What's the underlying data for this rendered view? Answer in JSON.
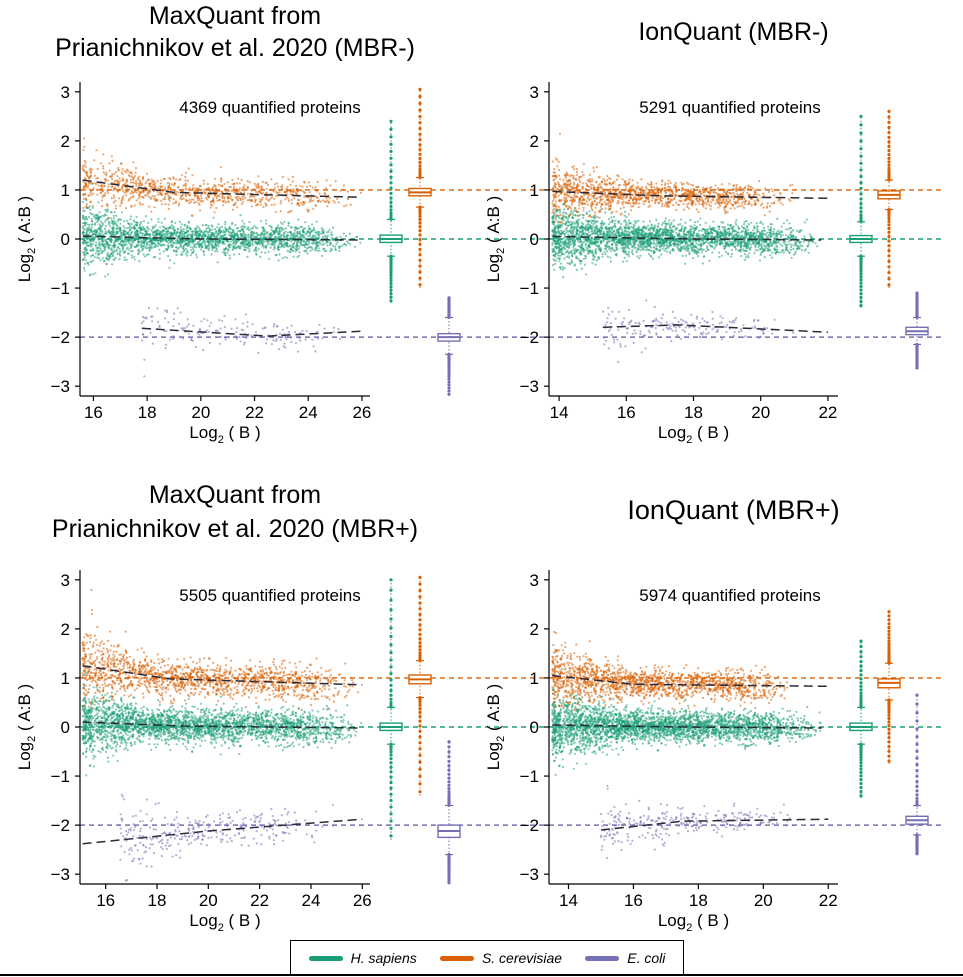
{
  "colors": {
    "H. sapiens": "#1b9e77",
    "S. cerevisiae": "#d95f02",
    "E. coli": "#7570b3"
  },
  "legend": {
    "items": [
      {
        "label": "H. sapiens",
        "color": "#1b9e77"
      },
      {
        "label": "S. cerevisiae",
        "color": "#d95f02"
      },
      {
        "label": "E. coli",
        "color": "#7570b3"
      }
    ]
  },
  "chart_data": [
    {
      "type": "scatter",
      "title": [
        "MaxQuant from",
        "Prianichnikov et al. 2020 (MBR-)"
      ],
      "annotation": "4369 quantified proteins",
      "xlabel": "Log2 ( B )",
      "ylabel": "Log2 ( A:B )",
      "xlim": [
        15.5,
        26.3
      ],
      "ylim": [
        -3.2,
        3.2
      ],
      "xticks": [
        16,
        18,
        20,
        22,
        24,
        26
      ],
      "yticks": [
        -3,
        -2,
        -1,
        0,
        1,
        2,
        3
      ],
      "expected": {
        "H. sapiens": 0,
        "S. cerevisiae": 1,
        "E. coli": -2
      },
      "series": [
        {
          "name": "H. sapiens",
          "x_range": [
            15.6,
            26.0
          ],
          "center": 0.0,
          "spread": 0.25,
          "count": 2200,
          "trend": [
            [
              15.6,
              0.06
            ],
            [
              20,
              0.0
            ],
            [
              26.0,
              -0.02
            ]
          ],
          "box": {
            "median": 0.0,
            "q1": -0.07,
            "q3": 0.08,
            "whisker_low": -0.35,
            "whisker_high": 0.4,
            "min": -1.3,
            "max": 2.4
          }
        },
        {
          "name": "S. cerevisiae",
          "x_range": [
            15.6,
            26.0
          ],
          "center": 0.95,
          "spread": 0.25,
          "count": 900,
          "trend": [
            [
              15.6,
              1.2
            ],
            [
              19,
              0.95
            ],
            [
              26.0,
              0.85
            ]
          ],
          "box": {
            "median": 0.95,
            "q1": 0.88,
            "q3": 1.03,
            "whisker_low": 0.65,
            "whisker_high": 1.25,
            "min": -1.0,
            "max": 3.05
          }
        },
        {
          "name": "E. coli",
          "x_range": [
            17.8,
            25.5
          ],
          "center": -1.95,
          "spread": 0.25,
          "count": 170,
          "trend": [
            [
              17.8,
              -1.82
            ],
            [
              22.5,
              -1.98
            ],
            [
              26.0,
              -1.88
            ]
          ],
          "box": {
            "median": -2.0,
            "q1": -2.08,
            "q3": -1.93,
            "whisker_low": -2.35,
            "whisker_high": -1.6,
            "min": -3.2,
            "max": -1.2
          }
        }
      ]
    },
    {
      "type": "scatter",
      "title": [
        "IonQuant (MBR-)"
      ],
      "annotation": "5291 quantified proteins",
      "xlabel": "Log2 ( B )",
      "ylabel": "Log2 ( A:B )",
      "xlim": [
        13.7,
        22.3
      ],
      "ylim": [
        -3.2,
        3.2
      ],
      "xticks": [
        14,
        16,
        18,
        20,
        22
      ],
      "yticks": [
        -3,
        -2,
        -1,
        0,
        1,
        2,
        3
      ],
      "expected": {
        "H. sapiens": 0,
        "S. cerevisiae": 1,
        "E. coli": -2
      },
      "series": [
        {
          "name": "H. sapiens",
          "x_range": [
            13.8,
            21.8
          ],
          "center": 0.0,
          "spread": 0.25,
          "count": 2600,
          "trend": [
            [
              13.8,
              0.05
            ],
            [
              18,
              0.0
            ],
            [
              21.8,
              -0.02
            ]
          ],
          "box": {
            "median": 0.0,
            "q1": -0.07,
            "q3": 0.07,
            "whisker_low": -0.35,
            "whisker_high": 0.35,
            "min": -1.4,
            "max": 2.5
          }
        },
        {
          "name": "S. cerevisiae",
          "x_range": [
            13.8,
            21.0
          ],
          "center": 0.88,
          "spread": 0.22,
          "count": 1200,
          "trend": [
            [
              13.8,
              0.97
            ],
            [
              17,
              0.88
            ],
            [
              22.0,
              0.83
            ]
          ],
          "box": {
            "median": 0.9,
            "q1": 0.82,
            "q3": 0.98,
            "whisker_low": 0.6,
            "whisker_high": 1.2,
            "min": -1.0,
            "max": 2.6
          }
        },
        {
          "name": "E. coli",
          "x_range": [
            15.3,
            21.0
          ],
          "center": -1.82,
          "spread": 0.2,
          "count": 190,
          "trend": [
            [
              15.3,
              -1.8
            ],
            [
              17.5,
              -1.75
            ],
            [
              22.0,
              -1.9
            ]
          ],
          "box": {
            "median": -1.88,
            "q1": -1.95,
            "q3": -1.8,
            "whisker_low": -2.15,
            "whisker_high": -1.6,
            "min": -2.65,
            "max": -1.1
          }
        }
      ]
    },
    {
      "type": "scatter",
      "title": [
        "MaxQuant from",
        "Prianichnikov et al. 2020 (MBR+)"
      ],
      "annotation": "5505 quantified proteins",
      "xlabel": "Log2 ( B )",
      "ylabel": "Log2 ( A:B )",
      "xlim": [
        15.0,
        26.3
      ],
      "ylim": [
        -3.2,
        3.2
      ],
      "xticks": [
        16,
        18,
        20,
        22,
        24,
        26
      ],
      "yticks": [
        -3,
        -2,
        -1,
        0,
        1,
        2,
        3
      ],
      "expected": {
        "H. sapiens": 0,
        "S. cerevisiae": 1,
        "E. coli": -2
      },
      "series": [
        {
          "name": "H. sapiens",
          "x_range": [
            15.1,
            26.0
          ],
          "center": 0.0,
          "spread": 0.28,
          "count": 2600,
          "trend": [
            [
              15.1,
              0.1
            ],
            [
              19,
              0.02
            ],
            [
              26.0,
              -0.02
            ]
          ],
          "box": {
            "median": 0.0,
            "q1": -0.07,
            "q3": 0.08,
            "whisker_low": -0.35,
            "whisker_high": 0.4,
            "min": -2.3,
            "max": 3.0
          }
        },
        {
          "name": "S. cerevisiae",
          "x_range": [
            15.1,
            26.0
          ],
          "center": 0.97,
          "spread": 0.3,
          "count": 1400,
          "trend": [
            [
              15.1,
              1.25
            ],
            [
              18.5,
              0.98
            ],
            [
              26.0,
              0.86
            ]
          ],
          "box": {
            "median": 0.97,
            "q1": 0.88,
            "q3": 1.06,
            "whisker_low": 0.6,
            "whisker_high": 1.35,
            "min": -1.4,
            "max": 3.05
          }
        },
        {
          "name": "E. coli",
          "x_range": [
            16.5,
            25.0
          ],
          "center": -2.15,
          "spread": 0.3,
          "count": 300,
          "trend": [
            [
              15.1,
              -2.38
            ],
            [
              20,
              -2.12
            ],
            [
              26.0,
              -1.88
            ]
          ],
          "box": {
            "median": -2.12,
            "q1": -2.25,
            "q3": -2.0,
            "whisker_low": -2.6,
            "whisker_high": -1.6,
            "min": -3.2,
            "max": -0.3
          }
        }
      ]
    },
    {
      "type": "scatter",
      "title": [
        "IonQuant (MBR+)"
      ],
      "annotation": "5974 quantified proteins",
      "xlabel": "Log2 ( B )",
      "ylabel": "Log2 ( A:B )",
      "xlim": [
        13.4,
        22.3
      ],
      "ylim": [
        -3.2,
        3.2
      ],
      "xticks": [
        14,
        16,
        18,
        20,
        22
      ],
      "yticks": [
        -3,
        -2,
        -1,
        0,
        1,
        2,
        3
      ],
      "expected": {
        "H. sapiens": 0,
        "S. cerevisiae": 1,
        "E. coli": -2
      },
      "series": [
        {
          "name": "H. sapiens",
          "x_range": [
            13.5,
            21.8
          ],
          "center": 0.0,
          "spread": 0.26,
          "count": 2900,
          "trend": [
            [
              13.5,
              0.04
            ],
            [
              17.5,
              0.0
            ],
            [
              21.8,
              -0.02
            ]
          ],
          "box": {
            "median": 0.0,
            "q1": -0.07,
            "q3": 0.08,
            "whisker_low": -0.35,
            "whisker_high": 0.4,
            "min": -1.45,
            "max": 1.75
          }
        },
        {
          "name": "S. cerevisiae",
          "x_range": [
            13.5,
            21.0
          ],
          "center": 0.88,
          "spread": 0.24,
          "count": 1500,
          "trend": [
            [
              13.5,
              1.05
            ],
            [
              16,
              0.87
            ],
            [
              22.0,
              0.83
            ]
          ],
          "box": {
            "median": 0.9,
            "q1": 0.8,
            "q3": 0.98,
            "whisker_low": 0.55,
            "whisker_high": 1.3,
            "min": -0.75,
            "max": 2.35
          }
        },
        {
          "name": "E. coli",
          "x_range": [
            15.0,
            21.0
          ],
          "center": -1.9,
          "spread": 0.22,
          "count": 280,
          "trend": [
            [
              15.0,
              -2.1
            ],
            [
              17.5,
              -1.92
            ],
            [
              22.0,
              -1.88
            ]
          ],
          "box": {
            "median": -1.9,
            "q1": -1.98,
            "q3": -1.82,
            "whisker_low": -2.2,
            "whisker_high": -1.6,
            "min": -2.6,
            "max": 0.65
          }
        }
      ]
    }
  ]
}
